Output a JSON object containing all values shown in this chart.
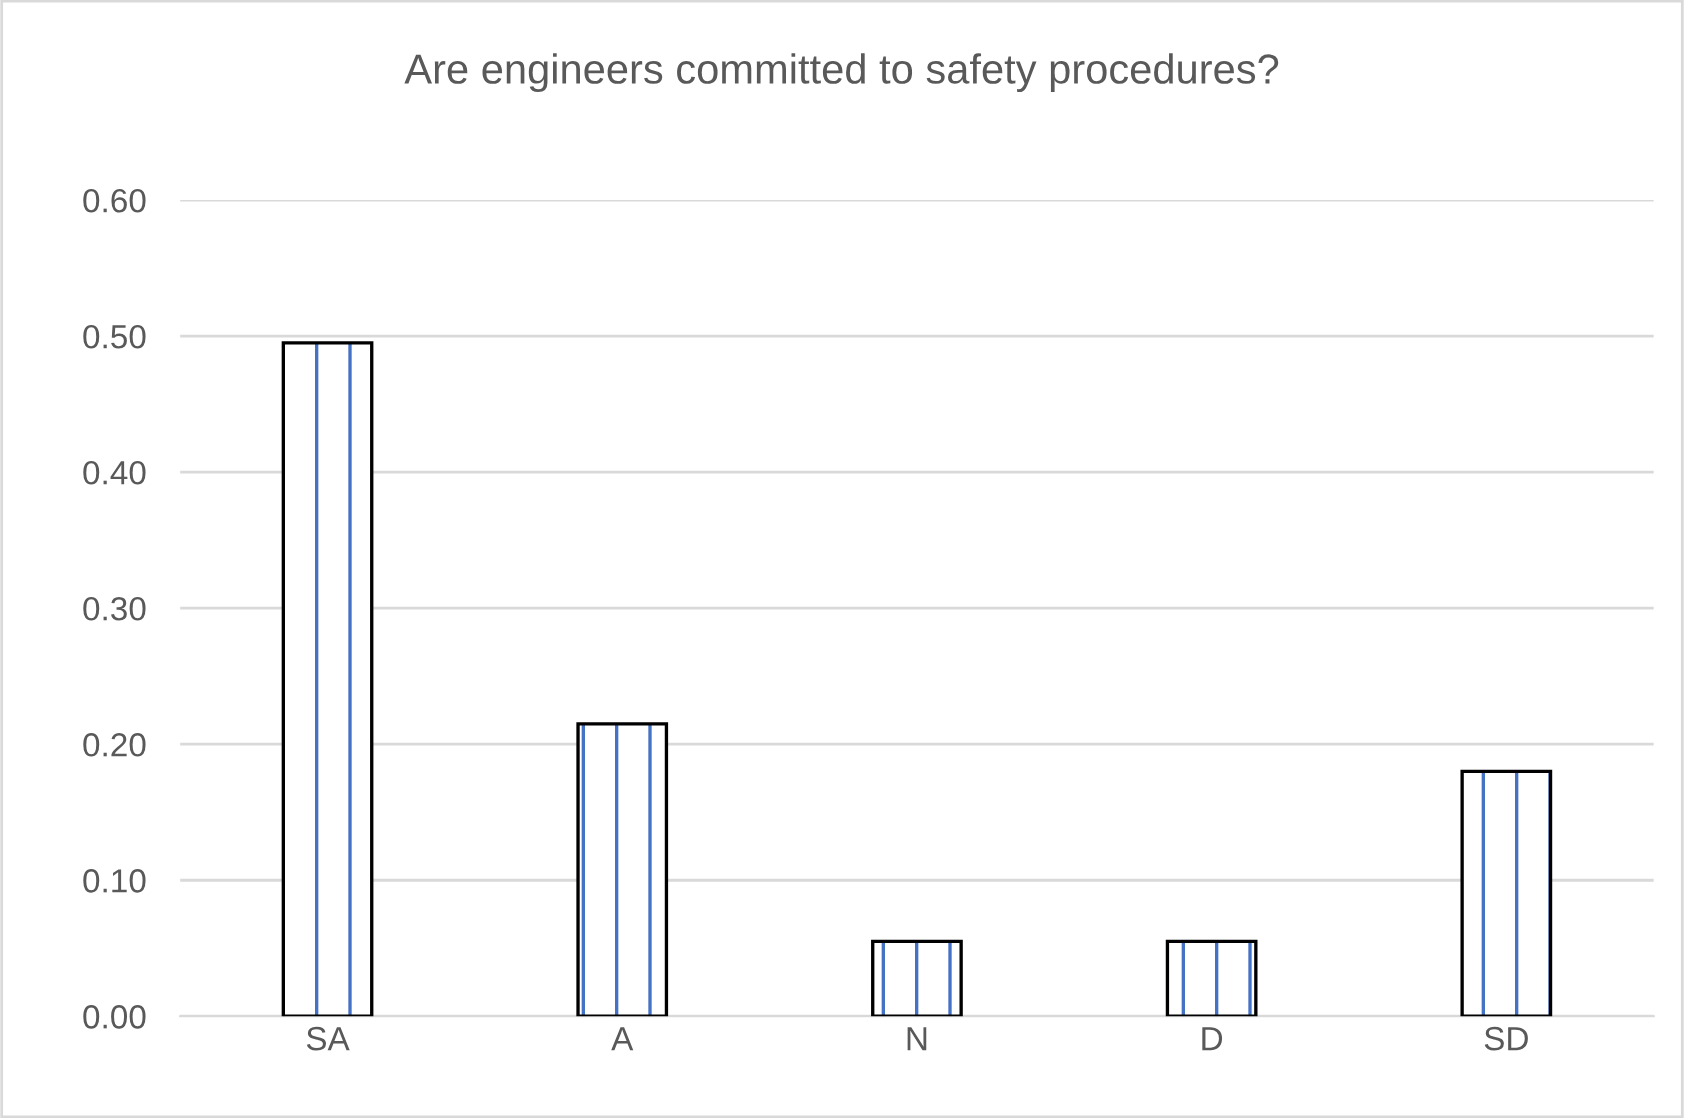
{
  "chart_data": {
    "type": "bar",
    "title": "Are engineers committed to safety procedures?",
    "categories": [
      "SA",
      "A",
      "N",
      "D",
      "SD"
    ],
    "values": [
      0.495,
      0.215,
      0.055,
      0.055,
      0.18
    ],
    "color": "#000000",
    "ylim": [
      0,
      0.6
    ],
    "yticks": [
      {
        "value": 0,
        "label": "0.00"
      },
      {
        "value": 0.1,
        "label": "0.10"
      },
      {
        "value": 0.2,
        "label": "0.20"
      },
      {
        "value": 0.3,
        "label": "0.30"
      },
      {
        "value": 0.4,
        "label": "0.40"
      },
      {
        "value": 0.5,
        "label": "0.50"
      },
      {
        "value": 0.6,
        "label": "0.60"
      }
    ],
    "grid": "y",
    "legend": false
  }
}
